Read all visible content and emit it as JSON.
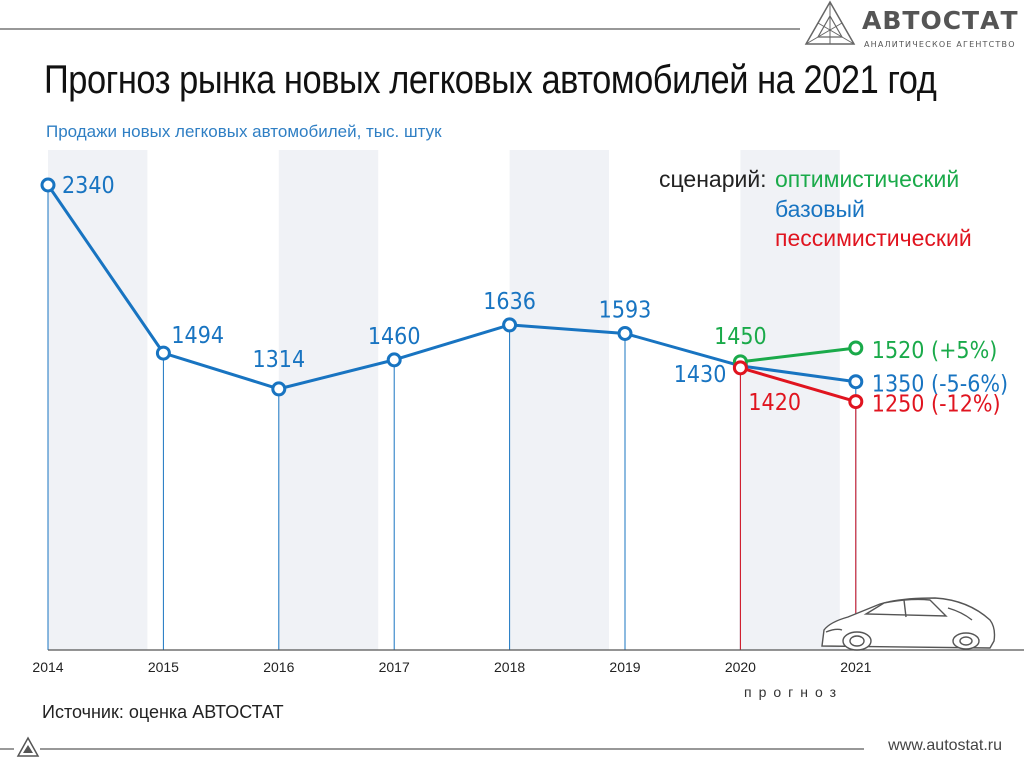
{
  "header": {
    "title": "Прогноз рынка новых легковых автомобилей на 2021 год",
    "subtitle": "Продажи новых легковых автомобилей, тыс. штук"
  },
  "logo": {
    "name": "АВТОСТАТ",
    "tagline": "АНАЛИТИЧЕСКОЕ АГЕНТСТВО"
  },
  "legend": {
    "prefix": "сценарий:",
    "optimistic": "оптимистический",
    "base": "базовый",
    "pessimistic": "пессимистический"
  },
  "footer": {
    "source": "Источник: оценка АВТОСТАТ",
    "website": "www.autostat.ru"
  },
  "forecast_label": "прогноз",
  "colors": {
    "base": "#1874c1",
    "optimistic": "#1aaa4a",
    "pessimistic": "#e0141f",
    "band": "#f0f2f6",
    "text": "#111111",
    "subtitle": "#2f7fc4"
  },
  "chart_data": {
    "type": "line",
    "title": "Прогноз рынка новых легковых автомобилей на 2021 год",
    "subtitle": "Продажи новых легковых автомобилей, тыс. штук",
    "categories": [
      "2014",
      "2015",
      "2016",
      "2017",
      "2018",
      "2019",
      "2020",
      "2021"
    ],
    "ylim": [
      0,
      2340
    ],
    "grid": false,
    "legend_position": "top-right",
    "series": [
      {
        "name": "базовый",
        "color": "#1874c1",
        "x": [
          "2014",
          "2015",
          "2016",
          "2017",
          "2018",
          "2019",
          "2020",
          "2021"
        ],
        "values": [
          2340,
          1494,
          1314,
          1460,
          1636,
          1593,
          1430,
          1350
        ],
        "labels": [
          "2340",
          "1494",
          "1314",
          "1460",
          "1636",
          "1593",
          "1430",
          "1350 (-5-6%)"
        ]
      },
      {
        "name": "оптимистический",
        "color": "#1aaa4a",
        "x": [
          "2020",
          "2021"
        ],
        "values": [
          1450,
          1520
        ],
        "labels": [
          "1450",
          "1520 (+5%)"
        ]
      },
      {
        "name": "пессимистический",
        "color": "#e0141f",
        "x": [
          "2020",
          "2021"
        ],
        "values": [
          1420,
          1250
        ],
        "labels": [
          "1420",
          "1250 (-12%)"
        ]
      }
    ]
  }
}
